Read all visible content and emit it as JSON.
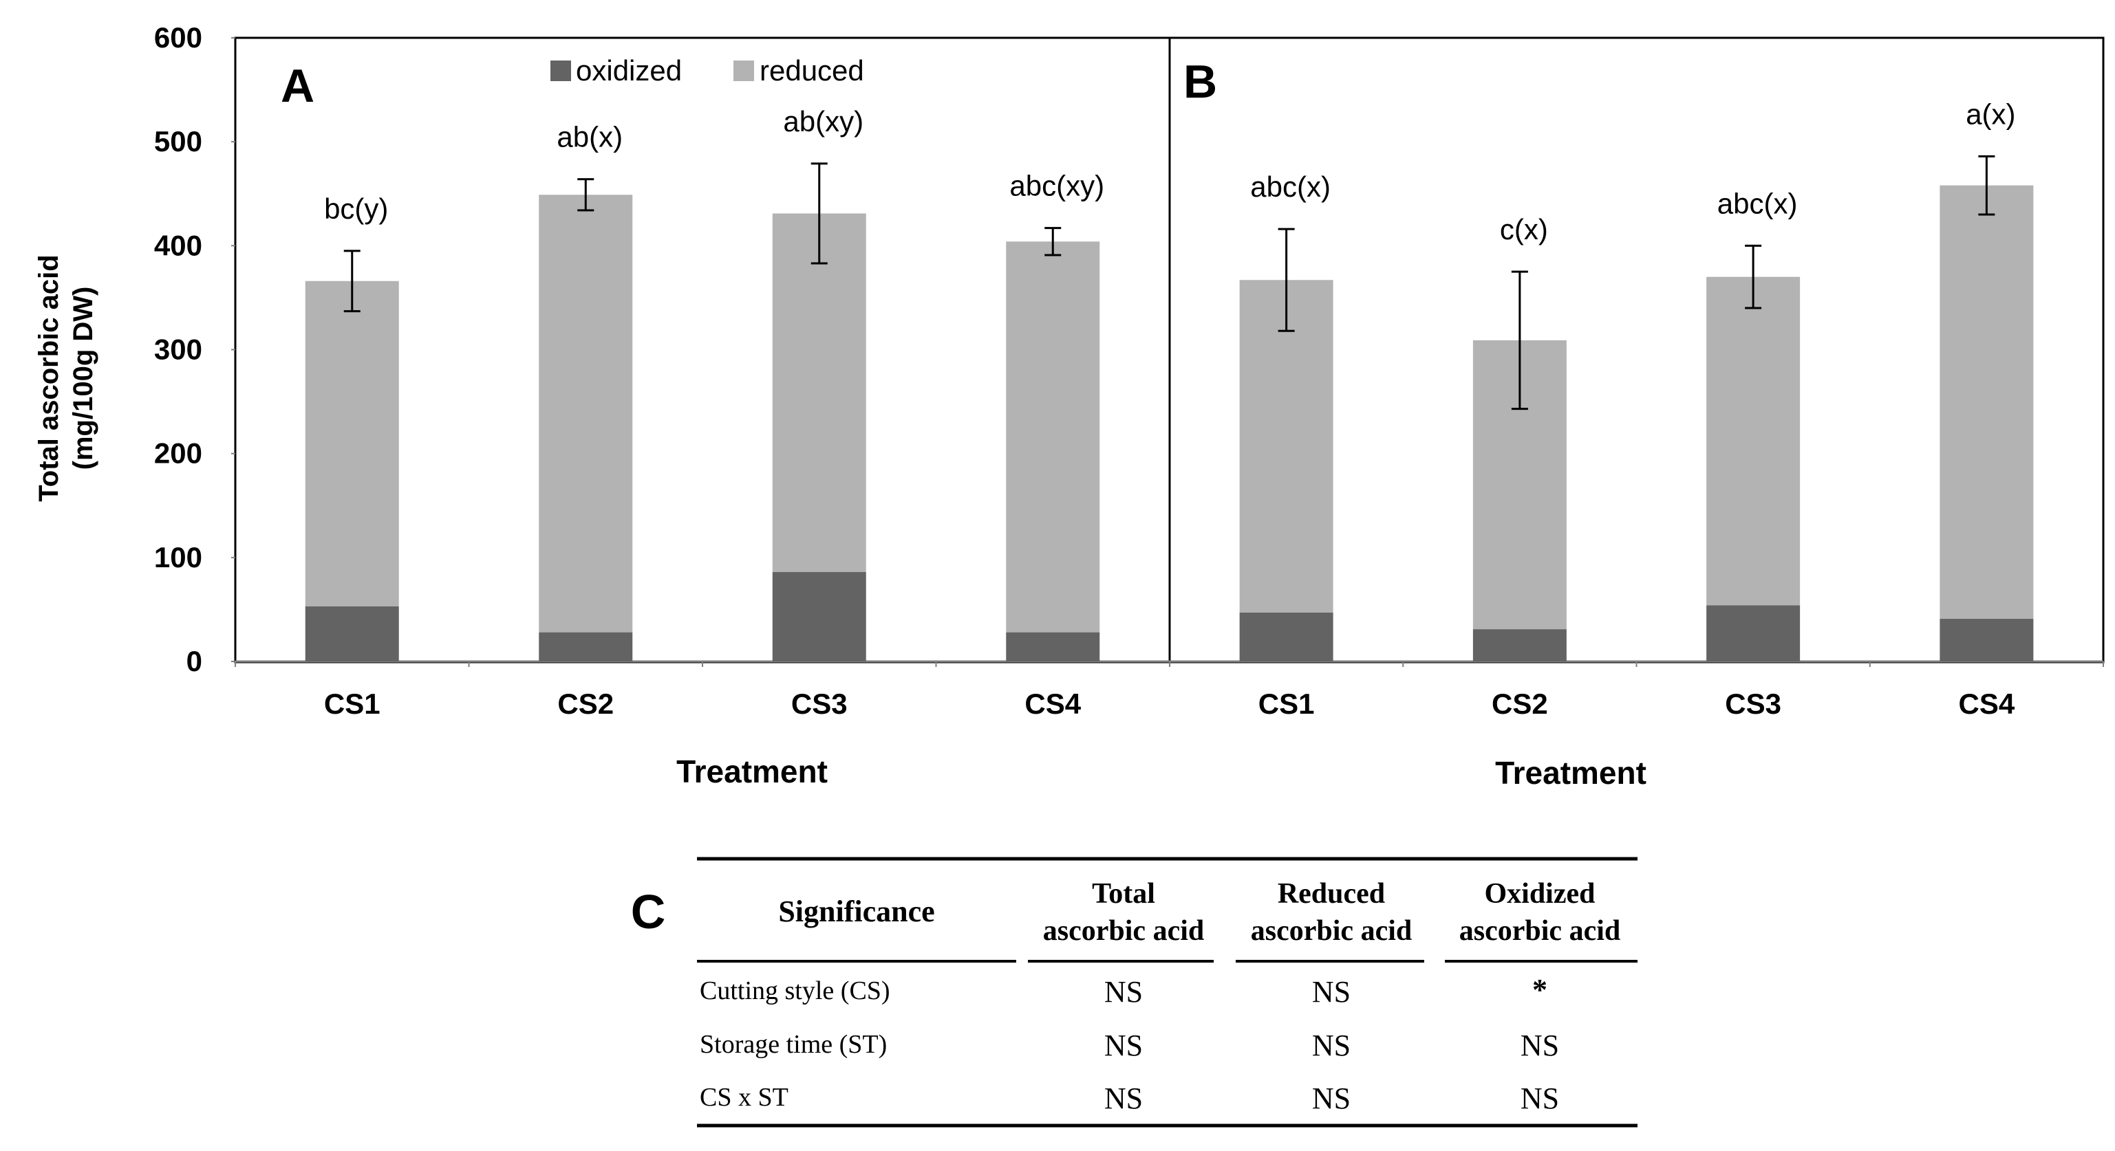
{
  "y_axis_label_line1": "Total ascorbic acid",
  "y_axis_label_line2": "(mg/100g DW)",
  "legend": {
    "oxidized": "oxidized",
    "reduced": "reduced"
  },
  "colors": {
    "oxidized": "#636363",
    "reduced": "#b3b3b3",
    "axis": "#7f7f7f",
    "text": "#000000"
  },
  "chart_data": [
    {
      "panel": "A",
      "type": "bar",
      "stacked": true,
      "title": "A",
      "xlabel": "Treatment",
      "ylabel": "Total ascorbic acid (mg/100g DW)",
      "ylim": [
        0,
        600
      ],
      "yticks": [
        "0",
        "100",
        "200",
        "300",
        "400",
        "500",
        "600"
      ],
      "categories": [
        "CS1",
        "CS2",
        "CS3",
        "CS4"
      ],
      "series": [
        {
          "name": "oxidized",
          "values": [
            53,
            28,
            86,
            28
          ]
        },
        {
          "name": "reduced",
          "values": [
            313,
            421,
            345,
            376
          ]
        }
      ],
      "totals": [
        366,
        449,
        431,
        404
      ],
      "error": [
        29,
        15,
        48,
        13
      ],
      "annotations": [
        "bc(y)",
        "ab(x)",
        "ab(xy)",
        "abc(xy)"
      ]
    },
    {
      "panel": "B",
      "type": "bar",
      "stacked": true,
      "title": "B",
      "xlabel": "Treatment",
      "ylabel": "Total ascorbic acid (mg/100g DW)",
      "ylim": [
        0,
        600
      ],
      "yticks": [
        "0",
        "100",
        "200",
        "300",
        "400",
        "500",
        "600"
      ],
      "categories": [
        "CS1",
        "CS2",
        "CS3",
        "CS4"
      ],
      "series": [
        {
          "name": "oxidized",
          "values": [
            47,
            31,
            54,
            41
          ]
        },
        {
          "name": "reduced",
          "values": [
            320,
            278,
            316,
            417
          ]
        }
      ],
      "totals": [
        367,
        309,
        370,
        458
      ],
      "error": [
        49,
        66,
        30,
        28
      ],
      "annotations": [
        "abc(x)",
        "c(x)",
        "abc(x)",
        "a(x)"
      ]
    }
  ],
  "table": {
    "label": "C",
    "header": {
      "col1": "Significance",
      "col2_line1": "Total",
      "col2_line2": "ascorbic acid",
      "col3_line1": "Reduced",
      "col3_line2": "ascorbic acid",
      "col4_line1": "Oxidized",
      "col4_line2": "ascorbic acid"
    },
    "rows": [
      {
        "label": "Cutting style (CS)",
        "total": "NS",
        "reduced": "NS",
        "oxidized": "*"
      },
      {
        "label": "Storage time (ST)",
        "total": "NS",
        "reduced": "NS",
        "oxidized": "NS"
      },
      {
        "label": "CS x ST",
        "total": "NS",
        "reduced": "NS",
        "oxidized": "NS"
      }
    ]
  }
}
